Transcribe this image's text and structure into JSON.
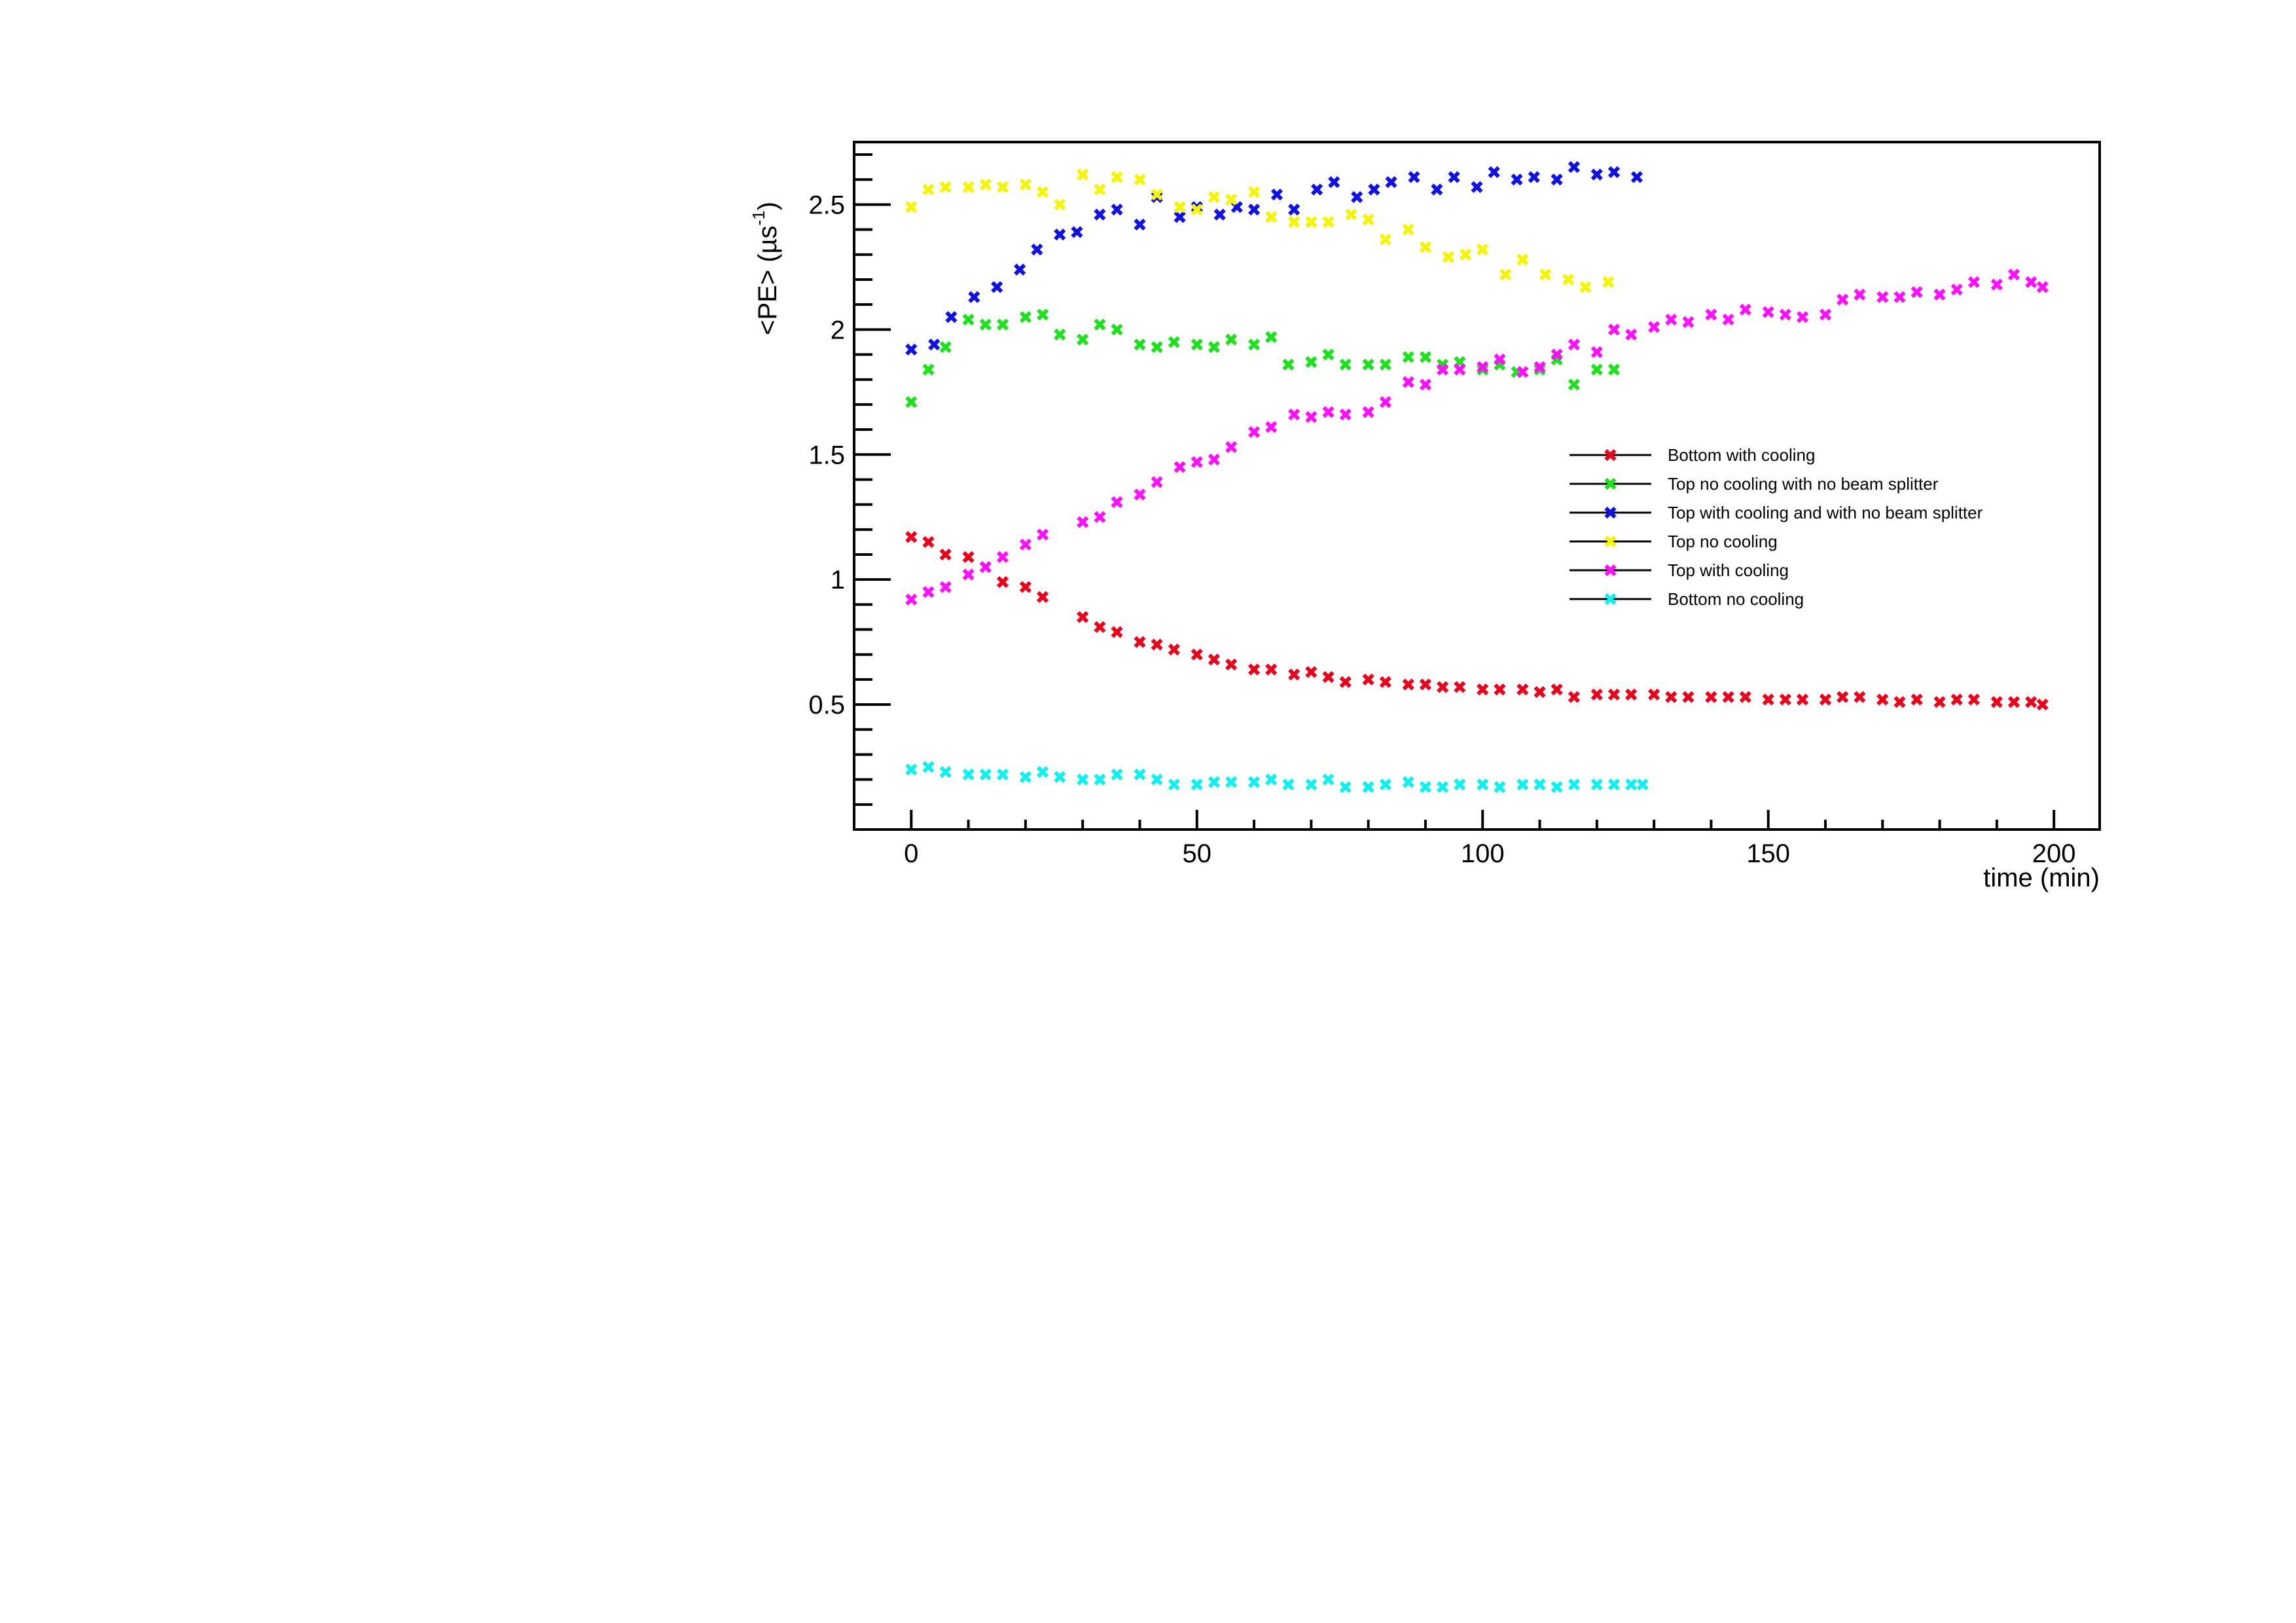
{
  "chart_data": {
    "type": "scatter",
    "title": "",
    "xlabel": "time (min)",
    "ylabel": "<PE> (µs",
    "ylabel_sup": "-1",
    "ylabel_close": ")",
    "xlim": [
      -10,
      208
    ],
    "ylim": [
      0.0,
      2.75
    ],
    "xticks": [
      0,
      50,
      100,
      150,
      200
    ],
    "xtick_labels": [
      "0",
      "50",
      "100",
      "150",
      "200"
    ],
    "yticks": [
      0.5,
      1.0,
      1.5,
      2.0,
      2.5
    ],
    "ytick_labels": [
      "0.5",
      "1",
      "1.5",
      "2",
      "2.5"
    ],
    "grid": false,
    "legend_position": "right-middle",
    "marker": "x",
    "series": [
      {
        "name": "Bottom with cooling",
        "color": "#e8001c",
        "x": [
          0,
          3,
          6,
          10,
          13,
          16,
          20,
          23,
          30,
          33,
          36,
          40,
          43,
          46,
          50,
          53,
          56,
          60,
          63,
          67,
          70,
          73,
          76,
          80,
          83,
          87,
          90,
          93,
          96,
          100,
          103,
          107,
          110,
          113,
          116,
          120,
          123,
          126,
          130,
          133,
          136,
          140,
          143,
          146,
          150,
          153,
          156,
          160,
          163,
          166,
          170,
          173,
          176,
          180,
          183,
          186,
          190,
          193,
          196,
          198
        ],
        "y": [
          1.17,
          1.15,
          1.1,
          1.09,
          1.05,
          0.99,
          0.97,
          0.93,
          0.85,
          0.81,
          0.79,
          0.75,
          0.74,
          0.72,
          0.7,
          0.68,
          0.66,
          0.64,
          0.64,
          0.62,
          0.63,
          0.61,
          0.59,
          0.6,
          0.59,
          0.58,
          0.58,
          0.57,
          0.57,
          0.56,
          0.56,
          0.56,
          0.55,
          0.56,
          0.53,
          0.54,
          0.54,
          0.54,
          0.54,
          0.53,
          0.53,
          0.53,
          0.53,
          0.53,
          0.52,
          0.52,
          0.52,
          0.52,
          0.53,
          0.53,
          0.52,
          0.51,
          0.52,
          0.51,
          0.52,
          0.52,
          0.51,
          0.51,
          0.51,
          0.5
        ]
      },
      {
        "name": "Top no cooling with no beam splitter",
        "color": "#1fe01f",
        "x": [
          0,
          3,
          6,
          10,
          13,
          16,
          20,
          23,
          26,
          30,
          33,
          36,
          40,
          43,
          46,
          50,
          53,
          56,
          60,
          63,
          66,
          70,
          73,
          76,
          80,
          83,
          87,
          90,
          93,
          96,
          100,
          103,
          106,
          110,
          113,
          116,
          120,
          123
        ],
        "y": [
          1.71,
          1.84,
          1.93,
          2.04,
          2.02,
          2.02,
          2.05,
          2.06,
          1.98,
          1.96,
          2.02,
          2.0,
          1.94,
          1.93,
          1.95,
          1.94,
          1.93,
          1.96,
          1.94,
          1.97,
          1.86,
          1.87,
          1.9,
          1.86,
          1.86,
          1.86,
          1.89,
          1.89,
          1.86,
          1.87,
          1.84,
          1.86,
          1.83,
          1.84,
          1.88,
          1.78,
          1.84,
          1.84
        ]
      },
      {
        "name": "Top with cooling and with no beam splitter",
        "color": "#1010e0",
        "x": [
          0,
          4,
          7,
          11,
          15,
          19,
          22,
          26,
          29,
          33,
          36,
          40,
          43,
          47,
          50,
          54,
          57,
          60,
          64,
          67,
          71,
          74,
          78,
          81,
          84,
          88,
          92,
          95,
          99,
          102,
          106,
          109,
          113,
          116,
          120,
          123,
          127
        ],
        "y": [
          1.92,
          1.94,
          2.05,
          2.13,
          2.17,
          2.24,
          2.32,
          2.38,
          2.39,
          2.46,
          2.48,
          2.42,
          2.53,
          2.45,
          2.49,
          2.46,
          2.49,
          2.48,
          2.54,
          2.48,
          2.56,
          2.59,
          2.53,
          2.56,
          2.59,
          2.61,
          2.56,
          2.61,
          2.57,
          2.63,
          2.6,
          2.61,
          2.6,
          2.65,
          2.62,
          2.63,
          2.61
        ]
      },
      {
        "name": "Top no cooling",
        "color": "#f5f500",
        "x": [
          0,
          3,
          6,
          10,
          13,
          16,
          20,
          23,
          26,
          30,
          33,
          36,
          40,
          43,
          47,
          50,
          53,
          56,
          60,
          63,
          67,
          70,
          73,
          77,
          80,
          83,
          87,
          90,
          94,
          97,
          100,
          104,
          107,
          111,
          115,
          118,
          122
        ],
        "y": [
          2.49,
          2.56,
          2.57,
          2.57,
          2.58,
          2.57,
          2.58,
          2.55,
          2.5,
          2.62,
          2.56,
          2.61,
          2.6,
          2.54,
          2.49,
          2.48,
          2.53,
          2.52,
          2.55,
          2.45,
          2.43,
          2.43,
          2.43,
          2.46,
          2.44,
          2.36,
          2.4,
          2.33,
          2.29,
          2.3,
          2.32,
          2.22,
          2.28,
          2.22,
          2.2,
          2.17,
          2.19
        ]
      },
      {
        "name": "Top with cooling",
        "color": "#ff10ff",
        "x": [
          0,
          3,
          6,
          10,
          13,
          16,
          20,
          23,
          30,
          33,
          36,
          40,
          43,
          47,
          50,
          53,
          56,
          60,
          63,
          67,
          70,
          73,
          76,
          80,
          83,
          87,
          90,
          93,
          96,
          100,
          103,
          107,
          110,
          113,
          116,
          120,
          123,
          126,
          130,
          133,
          136,
          140,
          143,
          146,
          150,
          153,
          156,
          160,
          163,
          166,
          170,
          173,
          176,
          180,
          183,
          186,
          190,
          193,
          196,
          198
        ],
        "y": [
          0.92,
          0.95,
          0.97,
          1.02,
          1.05,
          1.09,
          1.14,
          1.18,
          1.23,
          1.25,
          1.31,
          1.34,
          1.39,
          1.45,
          1.47,
          1.48,
          1.53,
          1.59,
          1.61,
          1.66,
          1.65,
          1.67,
          1.66,
          1.67,
          1.71,
          1.79,
          1.78,
          1.84,
          1.84,
          1.85,
          1.88,
          1.83,
          1.85,
          1.9,
          1.94,
          1.91,
          2.0,
          1.98,
          2.01,
          2.04,
          2.03,
          2.06,
          2.04,
          2.08,
          2.07,
          2.06,
          2.05,
          2.06,
          2.12,
          2.14,
          2.13,
          2.13,
          2.15,
          2.14,
          2.16,
          2.19,
          2.18,
          2.22,
          2.19,
          2.17
        ]
      },
      {
        "name": "Bottom no cooling",
        "color": "#10f0f0",
        "x": [
          0,
          3,
          6,
          10,
          13,
          16,
          20,
          23,
          26,
          30,
          33,
          36,
          40,
          43,
          46,
          50,
          53,
          56,
          60,
          63,
          66,
          70,
          73,
          76,
          80,
          83,
          87,
          90,
          93,
          96,
          100,
          103,
          107,
          110,
          113,
          116,
          120,
          123,
          126,
          128
        ],
        "y": [
          0.24,
          0.25,
          0.23,
          0.22,
          0.22,
          0.22,
          0.21,
          0.23,
          0.21,
          0.2,
          0.2,
          0.22,
          0.22,
          0.2,
          0.18,
          0.18,
          0.19,
          0.19,
          0.19,
          0.2,
          0.18,
          0.18,
          0.2,
          0.17,
          0.17,
          0.18,
          0.19,
          0.17,
          0.17,
          0.18,
          0.18,
          0.17,
          0.18,
          0.18,
          0.17,
          0.18,
          0.18,
          0.18,
          0.18,
          0.18
        ]
      }
    ]
  }
}
